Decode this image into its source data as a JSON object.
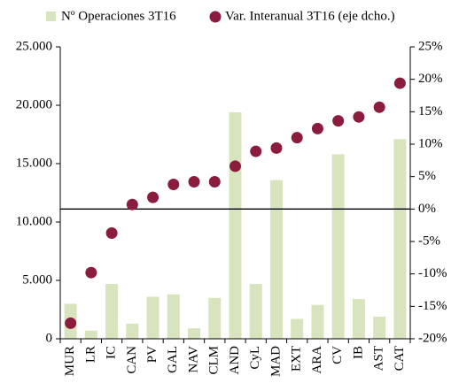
{
  "chart_data": {
    "type": "bar",
    "categories": [
      "MUR",
      "LR",
      "IC",
      "CAN",
      "PV",
      "GAL",
      "NAV",
      "CLM",
      "AND",
      "CyL",
      "MAD",
      "EXT",
      "ARA",
      "CV",
      "IB",
      "AST",
      "CAT"
    ],
    "series": [
      {
        "name": "Nº Operaciones 3T16",
        "type": "bar",
        "color": "#d7e4bd",
        "values": [
          3000,
          700,
          4700,
          1300,
          3600,
          3800,
          900,
          3500,
          19400,
          4700,
          13600,
          1700,
          2900,
          15800,
          3400,
          1900,
          17100
        ]
      },
      {
        "name": "Var. Interanual 3T16 (eje dcho.)",
        "type": "scatter",
        "axis": "y2",
        "color": "#8c1c3e",
        "values": [
          -17.6,
          -9.8,
          -3.7,
          0.7,
          1.8,
          3.8,
          4.2,
          4.2,
          6.6,
          8.9,
          9.4,
          11.0,
          12.4,
          13.6,
          14.2,
          15.7,
          19.4
        ]
      }
    ],
    "ylim": [
      0,
      25000
    ],
    "yticks": [
      0,
      {
        "value": 5000,
        "label": "5.000"
      },
      {
        "value": 10000,
        "label": "10.000"
      },
      {
        "value": 15000,
        "label": "15.000"
      },
      {
        "value": 20000,
        "label": "20.000"
      },
      {
        "value": 25000,
        "label": "25.000"
      }
    ],
    "y2lim": [
      -20,
      25
    ],
    "y2ticks": [
      {
        "value": -20,
        "label": "-20%"
      },
      {
        "value": -15,
        "label": "-15%"
      },
      {
        "value": -10,
        "label": "-10%"
      },
      {
        "value": -5,
        "label": "-5%"
      },
      {
        "value": 0,
        "label": "0%"
      },
      {
        "value": 5,
        "label": "5%"
      },
      {
        "value": 10,
        "label": "10%"
      },
      {
        "value": 15,
        "label": "15%"
      },
      {
        "value": 20,
        "label": "20%"
      },
      {
        "value": 25,
        "label": "25%"
      }
    ],
    "grid": false,
    "legend": "top"
  }
}
